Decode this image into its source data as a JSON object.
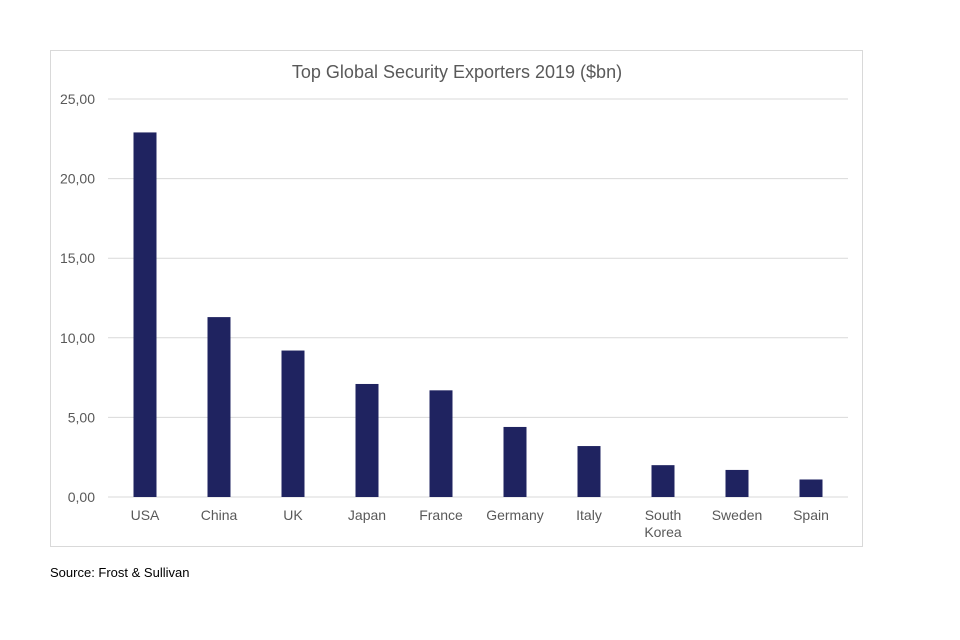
{
  "chart_data": {
    "type": "bar",
    "title": "Top Global Security Exporters 2019 ($bn)",
    "categories": [
      "USA",
      "China",
      "UK",
      "Japan",
      "France",
      "Germany",
      "Italy",
      "South Korea",
      "Sweden",
      "Spain"
    ],
    "values": [
      22.9,
      11.3,
      9.2,
      7.1,
      6.7,
      4.4,
      3.2,
      2.0,
      1.7,
      1.1
    ],
    "ylim": [
      0,
      25
    ],
    "yticks": [
      "0,00",
      "5,00",
      "10,00",
      "15,00",
      "20,00",
      "25,00"
    ],
    "xlabel": "",
    "ylabel": "",
    "grid": true,
    "legend": "none",
    "bar_color": "#1f2360"
  },
  "source": "Source: Frost & Sullivan"
}
